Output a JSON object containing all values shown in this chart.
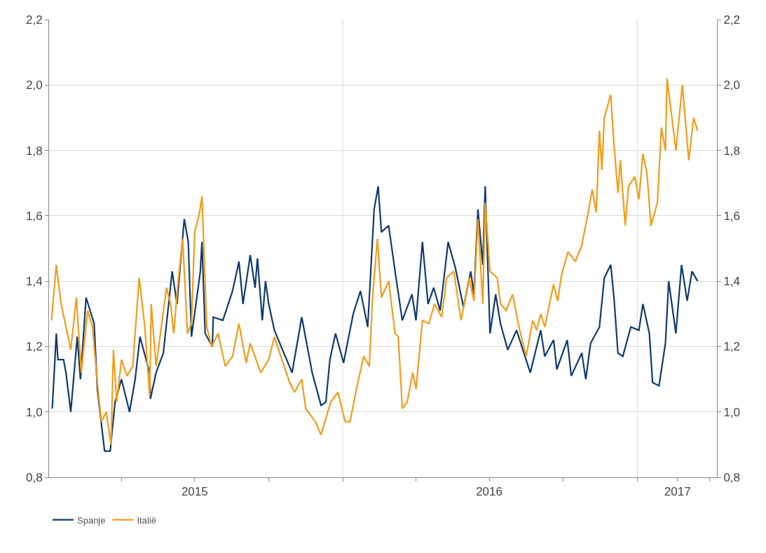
{
  "chart_data": {
    "type": "line",
    "xlim": [
      "2015-01-01",
      "2017-04-10"
    ],
    "xticks": [
      {
        "value": "2015-04-01",
        "label": null
      },
      {
        "value": "2015-07-01",
        "label": "2015"
      },
      {
        "value": "2015-10-01",
        "label": null
      },
      {
        "value": "2016-01-01",
        "label": null
      },
      {
        "value": "2016-04-01",
        "label": null
      },
      {
        "value": "2016-07-01",
        "label": "2016"
      },
      {
        "value": "2016-10-01",
        "label": null
      },
      {
        "value": "2017-01-01",
        "label": null
      },
      {
        "value": "2017-02-20",
        "label": "2017"
      },
      {
        "value": "2017-04-01",
        "label": null
      }
    ],
    "ylim": [
      0.8,
      2.2
    ],
    "yticks": [
      {
        "value": 0.8,
        "label": "0,8"
      },
      {
        "value": 1.0,
        "label": "1,0"
      },
      {
        "value": 1.2,
        "label": "1,2"
      },
      {
        "value": 1.4,
        "label": "1,4"
      },
      {
        "value": 1.6,
        "label": "1,6"
      },
      {
        "value": 1.8,
        "label": "1,8"
      },
      {
        "value": 2.0,
        "label": "2,0"
      },
      {
        "value": 2.2,
        "label": "2,2"
      }
    ],
    "y2lim": [
      0.8,
      2.2
    ],
    "y2ticks": [
      {
        "value": 0.8,
        "label": "0,8"
      },
      {
        "value": 1.0,
        "label": "1,0"
      },
      {
        "value": 1.2,
        "label": "1,2"
      },
      {
        "value": 1.4,
        "label": "1,4"
      },
      {
        "value": 1.6,
        "label": "1,6"
      },
      {
        "value": 1.8,
        "label": "1,8"
      },
      {
        "value": 2.0,
        "label": "2,0"
      },
      {
        "value": 2.2,
        "label": "2,2"
      }
    ],
    "grid": "y",
    "legend": "bottom left",
    "ref_lines": [
      {
        "axis": "x",
        "value": "2016-01-01",
        "color": "#d9d9d9"
      },
      {
        "axis": "x",
        "value": "2017-01-01",
        "color": "#d9d9d9"
      }
    ],
    "series": [
      {
        "name": "Spanje",
        "color": "#0f3a6e",
        "x": [
          "2015-01-05",
          "2015-01-10",
          "2015-01-12",
          "2015-01-19",
          "2015-01-22",
          "2015-01-28",
          "2015-02-05",
          "2015-02-09",
          "2015-02-16",
          "2015-02-26",
          "2015-03-02",
          "2015-03-11",
          "2015-03-18",
          "2015-03-24",
          "2015-04-01",
          "2015-04-11",
          "2015-04-18",
          "2015-04-24",
          "2015-05-06",
          "2015-05-07",
          "2015-05-14",
          "2015-05-23",
          "2015-06-03",
          "2015-06-09",
          "2015-06-18",
          "2015-06-23",
          "2015-06-27",
          "2015-07-08",
          "2015-07-10",
          "2015-07-14",
          "2015-07-23",
          "2015-07-24",
          "2015-08-05",
          "2015-08-17",
          "2015-08-25",
          "2015-08-30",
          "2015-09-08",
          "2015-09-14",
          "2015-09-17",
          "2015-09-23",
          "2015-09-27",
          "2015-10-01",
          "2015-10-08",
          "2015-10-30",
          "2015-11-11",
          "2015-11-24",
          "2015-12-05",
          "2015-12-11",
          "2015-12-16",
          "2015-12-23",
          "2016-01-02",
          "2016-01-14",
          "2016-01-23",
          "2016-02-01",
          "2016-02-09",
          "2016-02-14",
          "2016-02-18",
          "2016-02-27",
          "2016-03-06",
          "2016-03-15",
          "2016-03-27",
          "2016-04-01",
          "2016-04-09",
          "2016-04-16",
          "2016-04-23",
          "2016-05-01",
          "2016-05-11",
          "2016-05-20",
          "2016-05-30",
          "2016-06-08",
          "2016-06-12",
          "2016-06-17",
          "2016-06-23",
          "2016-06-26",
          "2016-07-02",
          "2016-07-09",
          "2016-07-15",
          "2016-07-24",
          "2016-08-04",
          "2016-08-21",
          "2016-09-03",
          "2016-09-08",
          "2016-09-19",
          "2016-09-23",
          "2016-10-06",
          "2016-10-11",
          "2016-10-24",
          "2016-10-29",
          "2016-11-04",
          "2016-11-15",
          "2016-11-21",
          "2016-11-29",
          "2016-12-03",
          "2016-12-08",
          "2016-12-14",
          "2016-12-24",
          "2017-01-03",
          "2017-01-08",
          "2017-01-16",
          "2017-01-20",
          "2017-01-28",
          "2017-02-05",
          "2017-02-09",
          "2017-02-18",
          "2017-02-25",
          "2017-03-04",
          "2017-03-10",
          "2017-03-17"
        ],
        "values": [
          1.01,
          1.24,
          1.16,
          1.16,
          1.12,
          1.0,
          1.23,
          1.1,
          1.35,
          1.27,
          1.07,
          0.88,
          0.88,
          1.03,
          1.1,
          1.0,
          1.1,
          1.23,
          1.12,
          1.04,
          1.12,
          1.18,
          1.43,
          1.33,
          1.59,
          1.52,
          1.23,
          1.43,
          1.52,
          1.24,
          1.2,
          1.29,
          1.28,
          1.37,
          1.46,
          1.33,
          1.48,
          1.38,
          1.47,
          1.28,
          1.4,
          1.33,
          1.25,
          1.12,
          1.29,
          1.12,
          1.02,
          1.03,
          1.16,
          1.24,
          1.15,
          1.3,
          1.37,
          1.26,
          1.62,
          1.69,
          1.55,
          1.57,
          1.43,
          1.28,
          1.36,
          1.28,
          1.52,
          1.33,
          1.38,
          1.31,
          1.52,
          1.44,
          1.32,
          1.43,
          1.36,
          1.62,
          1.45,
          1.69,
          1.24,
          1.36,
          1.27,
          1.19,
          1.25,
          1.12,
          1.25,
          1.17,
          1.22,
          1.13,
          1.22,
          1.11,
          1.18,
          1.1,
          1.21,
          1.26,
          1.41,
          1.45,
          1.35,
          1.18,
          1.17,
          1.26,
          1.25,
          1.33,
          1.24,
          1.09,
          1.08,
          1.21,
          1.4,
          1.24,
          1.45,
          1.34,
          1.43,
          1.4
        ]
      },
      {
        "name": "Italië",
        "color": "#f39c1a",
        "x": [
          "2015-01-04",
          "2015-01-10",
          "2015-01-16",
          "2015-01-28",
          "2015-02-04",
          "2015-02-10",
          "2015-02-18",
          "2015-02-24",
          "2015-03-02",
          "2015-03-07",
          "2015-03-13",
          "2015-03-19",
          "2015-03-22",
          "2015-03-26",
          "2015-04-01",
          "2015-04-08",
          "2015-04-15",
          "2015-04-23",
          "2015-04-30",
          "2015-05-06",
          "2015-05-08",
          "2015-05-14",
          "2015-05-27",
          "2015-06-01",
          "2015-06-05",
          "2015-06-10",
          "2015-06-16",
          "2015-06-22",
          "2015-06-27",
          "2015-07-01",
          "2015-07-07",
          "2015-07-10",
          "2015-07-16",
          "2015-07-22",
          "2015-07-30",
          "2015-08-08",
          "2015-08-17",
          "2015-08-25",
          "2015-09-03",
          "2015-09-08",
          "2015-09-21",
          "2015-10-01",
          "2015-10-08",
          "2015-10-16",
          "2015-10-27",
          "2015-11-02",
          "2015-11-11",
          "2015-11-16",
          "2015-11-28",
          "2015-12-05",
          "2015-12-17",
          "2015-12-26",
          "2016-01-04",
          "2016-01-10",
          "2016-01-18",
          "2016-01-27",
          "2016-02-03",
          "2016-02-07",
          "2016-02-13",
          "2016-02-18",
          "2016-02-27",
          "2016-03-06",
          "2016-03-10",
          "2016-03-15",
          "2016-03-21",
          "2016-03-28",
          "2016-04-01",
          "2016-04-09",
          "2016-04-17",
          "2016-04-24",
          "2016-05-03",
          "2016-05-09",
          "2016-05-18",
          "2016-05-27",
          "2016-06-06",
          "2016-06-12",
          "2016-06-17",
          "2016-06-23",
          "2016-06-26",
          "2016-07-02",
          "2016-07-11",
          "2016-07-15",
          "2016-07-22",
          "2016-07-30",
          "2016-08-07",
          "2016-08-16",
          "2016-08-24",
          "2016-08-29",
          "2016-09-03",
          "2016-09-08",
          "2016-09-19",
          "2016-09-24",
          "2016-09-29",
          "2016-10-07",
          "2016-10-16",
          "2016-10-24",
          "2016-11-01",
          "2016-11-06",
          "2016-11-11",
          "2016-11-15",
          "2016-11-18",
          "2016-11-21",
          "2016-11-29",
          "2016-12-03",
          "2016-12-08",
          "2016-12-11",
          "2016-12-17",
          "2016-12-21",
          "2016-12-29",
          "2017-01-03",
          "2017-01-08",
          "2017-01-13",
          "2017-01-18",
          "2017-01-26",
          "2017-01-31",
          "2017-02-05",
          "2017-02-07",
          "2017-02-13",
          "2017-02-18",
          "2017-02-26",
          "2017-03-06",
          "2017-03-12",
          "2017-03-17"
        ],
        "values": [
          1.28,
          1.45,
          1.33,
          1.19,
          1.35,
          1.12,
          1.31,
          1.26,
          1.09,
          0.97,
          1.0,
          0.9,
          1.19,
          1.03,
          1.16,
          1.11,
          1.14,
          1.41,
          1.26,
          1.05,
          1.33,
          1.14,
          1.38,
          1.33,
          1.24,
          1.39,
          1.53,
          1.24,
          1.27,
          1.55,
          1.61,
          1.66,
          1.26,
          1.2,
          1.24,
          1.14,
          1.17,
          1.27,
          1.15,
          1.21,
          1.12,
          1.16,
          1.23,
          1.17,
          1.09,
          1.06,
          1.1,
          1.01,
          0.97,
          0.93,
          1.03,
          1.06,
          0.97,
          0.97,
          1.07,
          1.17,
          1.14,
          1.35,
          1.53,
          1.35,
          1.4,
          1.24,
          1.23,
          1.01,
          1.03,
          1.12,
          1.07,
          1.28,
          1.27,
          1.33,
          1.29,
          1.41,
          1.43,
          1.28,
          1.41,
          1.34,
          1.59,
          1.33,
          1.64,
          1.43,
          1.41,
          1.33,
          1.31,
          1.36,
          1.26,
          1.17,
          1.28,
          1.25,
          1.3,
          1.26,
          1.39,
          1.34,
          1.42,
          1.49,
          1.46,
          1.51,
          1.61,
          1.68,
          1.61,
          1.86,
          1.74,
          1.9,
          1.97,
          1.82,
          1.67,
          1.77,
          1.57,
          1.69,
          1.72,
          1.65,
          1.79,
          1.73,
          1.57,
          1.64,
          1.87,
          1.8,
          2.02,
          1.9,
          1.8,
          2.0,
          1.77,
          1.9,
          1.86
        ]
      }
    ]
  }
}
